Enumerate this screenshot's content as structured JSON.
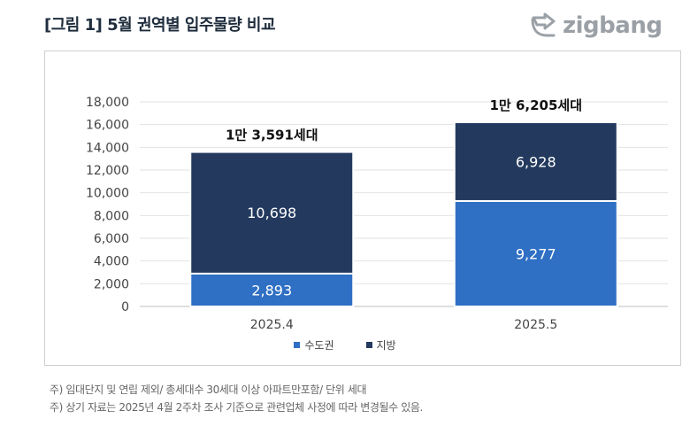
{
  "header": {
    "title": "[그림 1] 5월 권역별 입주물량 비교",
    "logo_text": "zigbang"
  },
  "chart_data": {
    "type": "bar",
    "stacked": true,
    "categories": [
      "2025.4",
      "2025.5"
    ],
    "series": [
      {
        "name": "수도권",
        "values": [
          2893,
          9277
        ],
        "labels": [
          "2,893",
          "9,277"
        ],
        "color": "#2f6fc4"
      },
      {
        "name": "지방",
        "values": [
          10698,
          6928
        ],
        "labels": [
          "10,698",
          "6,928"
        ],
        "color": "#233a5e"
      }
    ],
    "totals": [
      "1만 3,591세대",
      "1만 6,205세대"
    ],
    "ylim": [
      0,
      18000
    ],
    "yticks": [
      0,
      2000,
      4000,
      6000,
      8000,
      10000,
      12000,
      14000,
      16000,
      18000
    ],
    "ytick_labels": [
      "0",
      "2,000",
      "4,000",
      "6,000",
      "8,000",
      "10,000",
      "12,000",
      "14,000",
      "16,000",
      "18,000"
    ],
    "grid": true,
    "legend_position": "bottom"
  },
  "notes": [
    "주) 임대단지 및 연립 제외/ 총세대수 30세대 이상 아파트만포함/ 단위 세대",
    "주) 상기 자료는 2025년 4월 2주차 조사 기준으로 관련업체 사정에 따라 변경될수 있음."
  ]
}
